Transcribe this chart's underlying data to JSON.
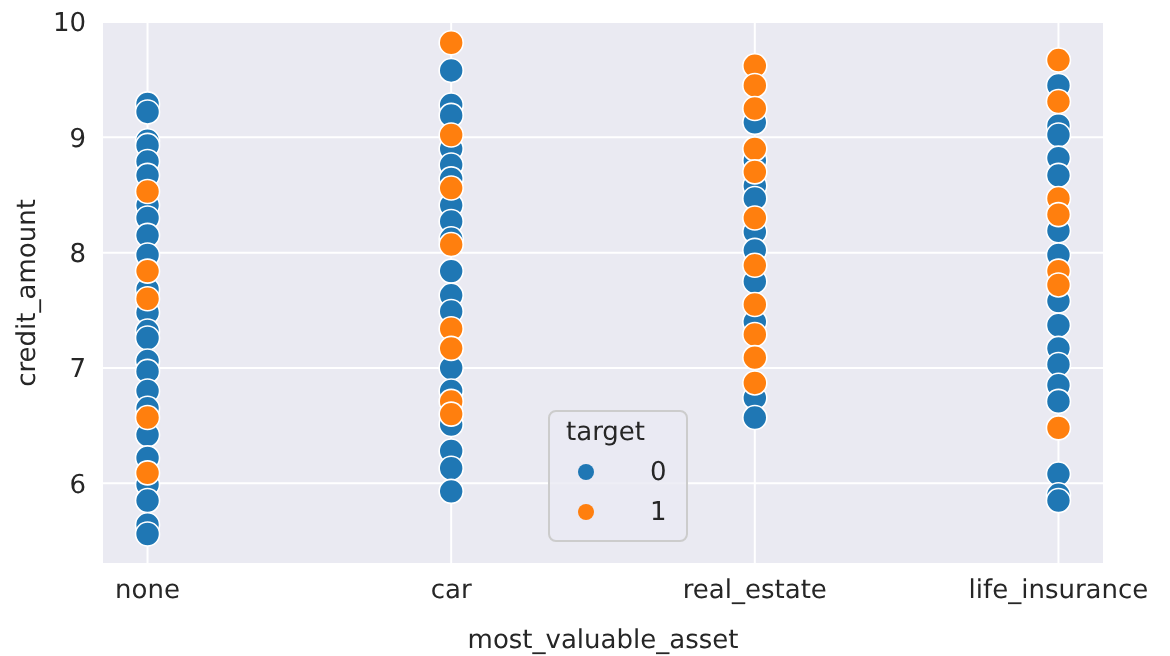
{
  "chart_data": {
    "type": "scatter",
    "xlabel": "most_valuable_asset",
    "ylabel": "credit_amount",
    "legend_title": "target",
    "categories": [
      "none",
      "car",
      "real_estate",
      "life_insurance"
    ],
    "ylim": [
      5.3,
      10.0
    ],
    "yticks": [
      6,
      7,
      8,
      9,
      10
    ],
    "grid": true,
    "legend": "bottom",
    "marker": "circle",
    "series": [
      {
        "name": "0",
        "color": "#1f77b4",
        "x": [
          "none",
          "none",
          "none",
          "none",
          "none",
          "none",
          "none",
          "none",
          "none",
          "none",
          "none",
          "none",
          "none",
          "none",
          "none",
          "none",
          "none",
          "none",
          "none",
          "none",
          "none",
          "none",
          "none",
          "none",
          "car",
          "car",
          "car",
          "car",
          "car",
          "car",
          "car",
          "car",
          "car",
          "car",
          "car",
          "car",
          "car",
          "car",
          "car",
          "car",
          "car",
          "car",
          "real_estate",
          "real_estate",
          "real_estate",
          "real_estate",
          "real_estate",
          "real_estate",
          "real_estate",
          "real_estate",
          "real_estate",
          "real_estate",
          "life_insurance",
          "life_insurance",
          "life_insurance",
          "life_insurance",
          "life_insurance",
          "life_insurance",
          "life_insurance",
          "life_insurance",
          "life_insurance",
          "life_insurance",
          "life_insurance",
          "life_insurance",
          "life_insurance",
          "life_insurance",
          "life_insurance",
          "life_insurance"
        ],
        "values": [
          9.29,
          9.22,
          8.97,
          8.93,
          8.79,
          8.67,
          8.41,
          8.3,
          8.15,
          7.98,
          7.68,
          7.48,
          7.32,
          7.26,
          7.06,
          6.97,
          6.8,
          6.65,
          6.42,
          6.22,
          5.99,
          5.85,
          5.64,
          5.56,
          9.58,
          9.28,
          9.19,
          8.9,
          8.76,
          8.64,
          8.41,
          8.27,
          8.12,
          7.84,
          7.63,
          7.49,
          7.0,
          6.8,
          6.51,
          6.28,
          6.13,
          5.93,
          9.13,
          8.8,
          8.58,
          8.47,
          8.18,
          8.02,
          7.75,
          7.4,
          6.74,
          6.57,
          9.45,
          9.1,
          9.02,
          8.82,
          8.67,
          8.19,
          7.98,
          7.58,
          7.37,
          7.17,
          7.03,
          6.85,
          6.71,
          6.08,
          5.9,
          5.85
        ]
      },
      {
        "name": "1",
        "color": "#ff7f0e",
        "x": [
          "none",
          "none",
          "none",
          "none",
          "none",
          "car",
          "car",
          "car",
          "car",
          "car",
          "car",
          "car",
          "car",
          "real_estate",
          "real_estate",
          "real_estate",
          "real_estate",
          "real_estate",
          "real_estate",
          "real_estate",
          "real_estate",
          "real_estate",
          "real_estate",
          "real_estate",
          "life_insurance",
          "life_insurance",
          "life_insurance",
          "life_insurance",
          "life_insurance",
          "life_insurance",
          "life_insurance"
        ],
        "values": [
          8.53,
          7.84,
          7.6,
          6.57,
          6.09,
          9.82,
          9.02,
          8.56,
          8.07,
          7.34,
          7.17,
          6.71,
          6.6,
          9.62,
          9.45,
          9.25,
          8.9,
          8.7,
          8.3,
          7.89,
          7.55,
          7.29,
          7.09,
          6.87,
          9.67,
          9.31,
          8.47,
          8.33,
          7.84,
          7.72,
          6.48
        ]
      }
    ]
  }
}
